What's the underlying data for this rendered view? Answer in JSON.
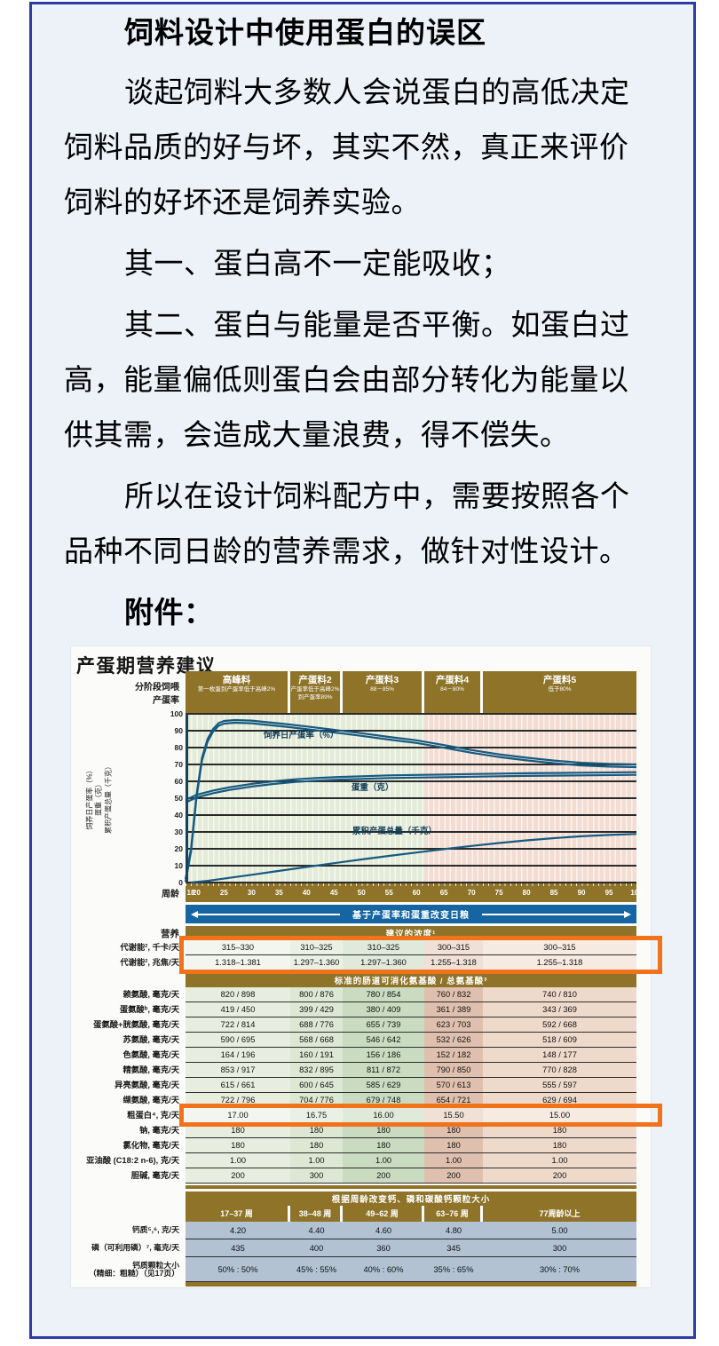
{
  "colors": {
    "border": "#2d3da6",
    "pagebg": "#edf1f8",
    "brown": "#8e7329",
    "blueband": "#1565a3",
    "orange": "#f0731c",
    "curve": "#175a80",
    "bottom_tint": "#b2c2d2",
    "plot_green": "#e4ebd8",
    "plot_pink": "#f3ddd2",
    "col_tints": [
      "#e8eedf",
      "#dce8d4",
      "#c9dcc1",
      "#dfc0ae",
      "#eedacb"
    ],
    "col_tints_light": [
      "#f3f6ee",
      "#eaf1e4",
      "#dfeadb",
      "#f0e0d6",
      "#f6eae1"
    ]
  },
  "article": {
    "title": "饲料设计中使用蛋白的误区",
    "paragraphs": [
      {
        "bold": false,
        "lines": [
          "谈起饲料大多数人会说蛋白的高低决定",
          "饲料品质的好与坏，其实不然，真正来评价",
          "饲料的好坏还是饲养实验。"
        ]
      },
      {
        "bold": false,
        "lines": [
          "其一、蛋白高不一定能吸收；"
        ]
      },
      {
        "bold": false,
        "lines": [
          "其二、蛋白与能量是否平衡。如蛋白过",
          "高，能量偏低则蛋白会由部分转化为能量以",
          "供其需，会造成大量浪费，得不偿失。"
        ]
      },
      {
        "bold": false,
        "lines": [
          "所以在设计饲料配方中，需要按照各个",
          "品种不同日龄的营养需求，做针对性设计。"
        ]
      },
      {
        "bold": true,
        "lines": [
          "附件："
        ]
      }
    ]
  },
  "figure": {
    "title": "产蛋期营养建议",
    "stage_label": "分阶段饲喂\n产蛋率",
    "stages": [
      {
        "name": "高峰料",
        "sub": "第一枚蛋到产蛋率低于高峰2%"
      },
      {
        "name": "产蛋料2",
        "sub": "产蛋率低于高峰2%到产蛋率89%"
      },
      {
        "name": "产蛋料3",
        "sub": "88－85%"
      },
      {
        "name": "产蛋料4",
        "sub": "84－80%"
      },
      {
        "name": "产蛋料5",
        "sub": "低于80%"
      }
    ],
    "y_axis_label": "饲养日产蛋率（%）\n蛋重（克）\n累积产蛋总量（千克）",
    "blue_band": "基于产蛋率和蛋重改变日粮",
    "chart_data": {
      "type": "line",
      "title": "产蛋期营养建议",
      "xlabel": "周龄",
      "ylabel": "",
      "x_range": [
        18,
        100
      ],
      "ylim": [
        0,
        100
      ],
      "x_ticks": [
        18,
        20,
        25,
        30,
        35,
        40,
        45,
        50,
        55,
        60,
        65,
        70,
        75,
        80,
        85,
        90,
        95,
        100
      ],
      "y_ticks": [
        100,
        90,
        80,
        70,
        60,
        50,
        40,
        30,
        20,
        10,
        0
      ],
      "grid": true,
      "series": [
        {
          "name": "饲养日产蛋率（%）",
          "double_line": true,
          "label_at": [
            39,
            88
          ],
          "points": [
            [
              18,
              2
            ],
            [
              19,
              20
            ],
            [
              20,
              52
            ],
            [
              21,
              74
            ],
            [
              22,
              85
            ],
            [
              23,
              91
            ],
            [
              24,
              94.5
            ],
            [
              25,
              95.8
            ],
            [
              27,
              96.3
            ],
            [
              30,
              96
            ],
            [
              33,
              95
            ],
            [
              36,
              94
            ],
            [
              40,
              92.5
            ],
            [
              45,
              90.5
            ],
            [
              50,
              88.5
            ],
            [
              55,
              86.3
            ],
            [
              60,
              84.3
            ],
            [
              65,
              81.5
            ],
            [
              70,
              78.5
            ],
            [
              75,
              76
            ],
            [
              80,
              74
            ],
            [
              85,
              72.3
            ],
            [
              90,
              71
            ],
            [
              95,
              70.3
            ],
            [
              100,
              70
            ]
          ]
        },
        {
          "name": "蛋重（克）",
          "double_line": true,
          "label_at": [
            52,
            57
          ],
          "points": [
            [
              18,
              49
            ],
            [
              20,
              52
            ],
            [
              23,
              54.5
            ],
            [
              26,
              56.5
            ],
            [
              30,
              58.5
            ],
            [
              34,
              60
            ],
            [
              38,
              61.2
            ],
            [
              42,
              62
            ],
            [
              46,
              62.6
            ],
            [
              50,
              63
            ],
            [
              55,
              63.5
            ],
            [
              60,
              63.8
            ],
            [
              65,
              64
            ],
            [
              70,
              64.3
            ],
            [
              80,
              64.8
            ],
            [
              90,
              65.1
            ],
            [
              100,
              65.4
            ]
          ]
        },
        {
          "name": "累积产蛋总量（千克）",
          "double_line": false,
          "label_at": [
            56,
            31
          ],
          "points": [
            [
              19,
              0
            ],
            [
              22,
              1
            ],
            [
              26,
              2.8
            ],
            [
              30,
              4.6
            ],
            [
              35,
              6.9
            ],
            [
              40,
              9.2
            ],
            [
              45,
              11.5
            ],
            [
              50,
              13.7
            ],
            [
              55,
              15.8
            ],
            [
              60,
              17.8
            ],
            [
              65,
              19.8
            ],
            [
              70,
              21.7
            ],
            [
              75,
              23.4
            ],
            [
              80,
              25
            ],
            [
              85,
              26.3
            ],
            [
              90,
              27.4
            ],
            [
              95,
              28.2
            ],
            [
              100,
              28.8
            ]
          ]
        }
      ]
    },
    "table": {
      "nutrient_label": "营养",
      "sections": [
        {
          "type": "band",
          "left": "营养",
          "text": "建议的浓度¹"
        },
        {
          "type": "rows",
          "highlight": true,
          "light": true,
          "rows": [
            {
              "label": "代谢能², 千卡/天",
              "values": [
                "315–330",
                "310–325",
                "310–325",
                "300–315",
                "300–315"
              ]
            },
            {
              "label": "代谢能², 兆焦/天",
              "values": [
                "1.318–1.381",
                "1.297–1.360",
                "1.297–1.360",
                "1.255–1.318",
                "1.255–1.318"
              ]
            }
          ]
        },
        {
          "type": "band",
          "left": "",
          "text": "标准的肠道可消化氨基酸 / 总氨基酸³"
        },
        {
          "type": "rows",
          "highlight": false,
          "light": false,
          "rows": [
            {
              "label": "赖氨酸, 毫克/天",
              "values": [
                "820 / 898",
                "800 / 876",
                "780 / 854",
                "760 / 832",
                "740 / 810"
              ]
            },
            {
              "label": "蛋氨酸ᵇ, 毫克/天",
              "values": [
                "419 / 450",
                "399 / 429",
                "380 / 409",
                "361 / 389",
                "343 / 369"
              ]
            },
            {
              "label": "蛋氨酸+胱氨酸, 毫克/天",
              "values": [
                "722 / 814",
                "688 / 776",
                "655 / 739",
                "623 / 703",
                "592 / 668"
              ]
            },
            {
              "label": "苏氨酸, 毫克/天",
              "values": [
                "590 / 695",
                "568 / 668",
                "546 / 642",
                "532 / 626",
                "518 / 609"
              ]
            },
            {
              "label": "色氨酸, 毫克/天",
              "values": [
                "164 / 196",
                "160 / 191",
                "156 / 186",
                "152 / 182",
                "148 / 177"
              ]
            },
            {
              "label": "精氨酸, 毫克/天",
              "values": [
                "853 / 917",
                "832 / 895",
                "811 / 872",
                "790 / 850",
                "770 / 828"
              ]
            },
            {
              "label": "异亮氨酸, 毫克/天",
              "values": [
                "615 / 661",
                "600 / 645",
                "585 / 629",
                "570 / 613",
                "555 / 597"
              ]
            },
            {
              "label": "缬氨酸, 毫克/天",
              "values": [
                "722 / 796",
                "704 / 776",
                "679 / 748",
                "654 / 721",
                "629 / 694"
              ]
            }
          ]
        },
        {
          "type": "rows",
          "highlight": true,
          "light": true,
          "rows": [
            {
              "label": "粗蛋白⁴, 克/天",
              "values": [
                "17.00",
                "16.75",
                "16.00",
                "15.50",
                "15.00"
              ]
            }
          ]
        },
        {
          "type": "rows",
          "highlight": false,
          "light": false,
          "rows": [
            {
              "label": "钠, 毫克/天",
              "values": [
                "180",
                "180",
                "180",
                "180",
                "180"
              ]
            },
            {
              "label": "氯化物, 毫克/天",
              "values": [
                "180",
                "180",
                "180",
                "180",
                "180"
              ]
            },
            {
              "label": "亚油酸 (C18:2 n-6), 克/天",
              "values": [
                "1.00",
                "1.00",
                "1.00",
                "1.00",
                "1.00"
              ]
            },
            {
              "label": "胆碱, 毫克/天",
              "values": [
                "200",
                "300",
                "200",
                "200",
                "200"
              ]
            }
          ]
        }
      ],
      "bottom_band": "根据周龄改变钙、磷和碳酸钙颗粒大小",
      "week_headers": [
        "17–37 周",
        "38–48 周",
        "49–62 周",
        "63–76 周",
        "77周龄以上"
      ],
      "bottom_rows": [
        {
          "label": "钙质⁵,⁶, 克/天",
          "values": [
            "4.20",
            "4.40",
            "4.60",
            "4.80",
            "5.00"
          ],
          "h": 20
        },
        {
          "label": "磷（可利用磷）⁷, 毫克/天",
          "values": [
            "435",
            "400",
            "360",
            "345",
            "300"
          ],
          "h": 20
        },
        {
          "label": "钙质颗粒大小\n（精细：粗糙）（见17页）",
          "values": [
            "50% : 50%",
            "45% : 55%",
            "40% : 60%",
            "35% : 65%",
            "30% : 70%"
          ],
          "h": 28
        }
      ]
    }
  }
}
